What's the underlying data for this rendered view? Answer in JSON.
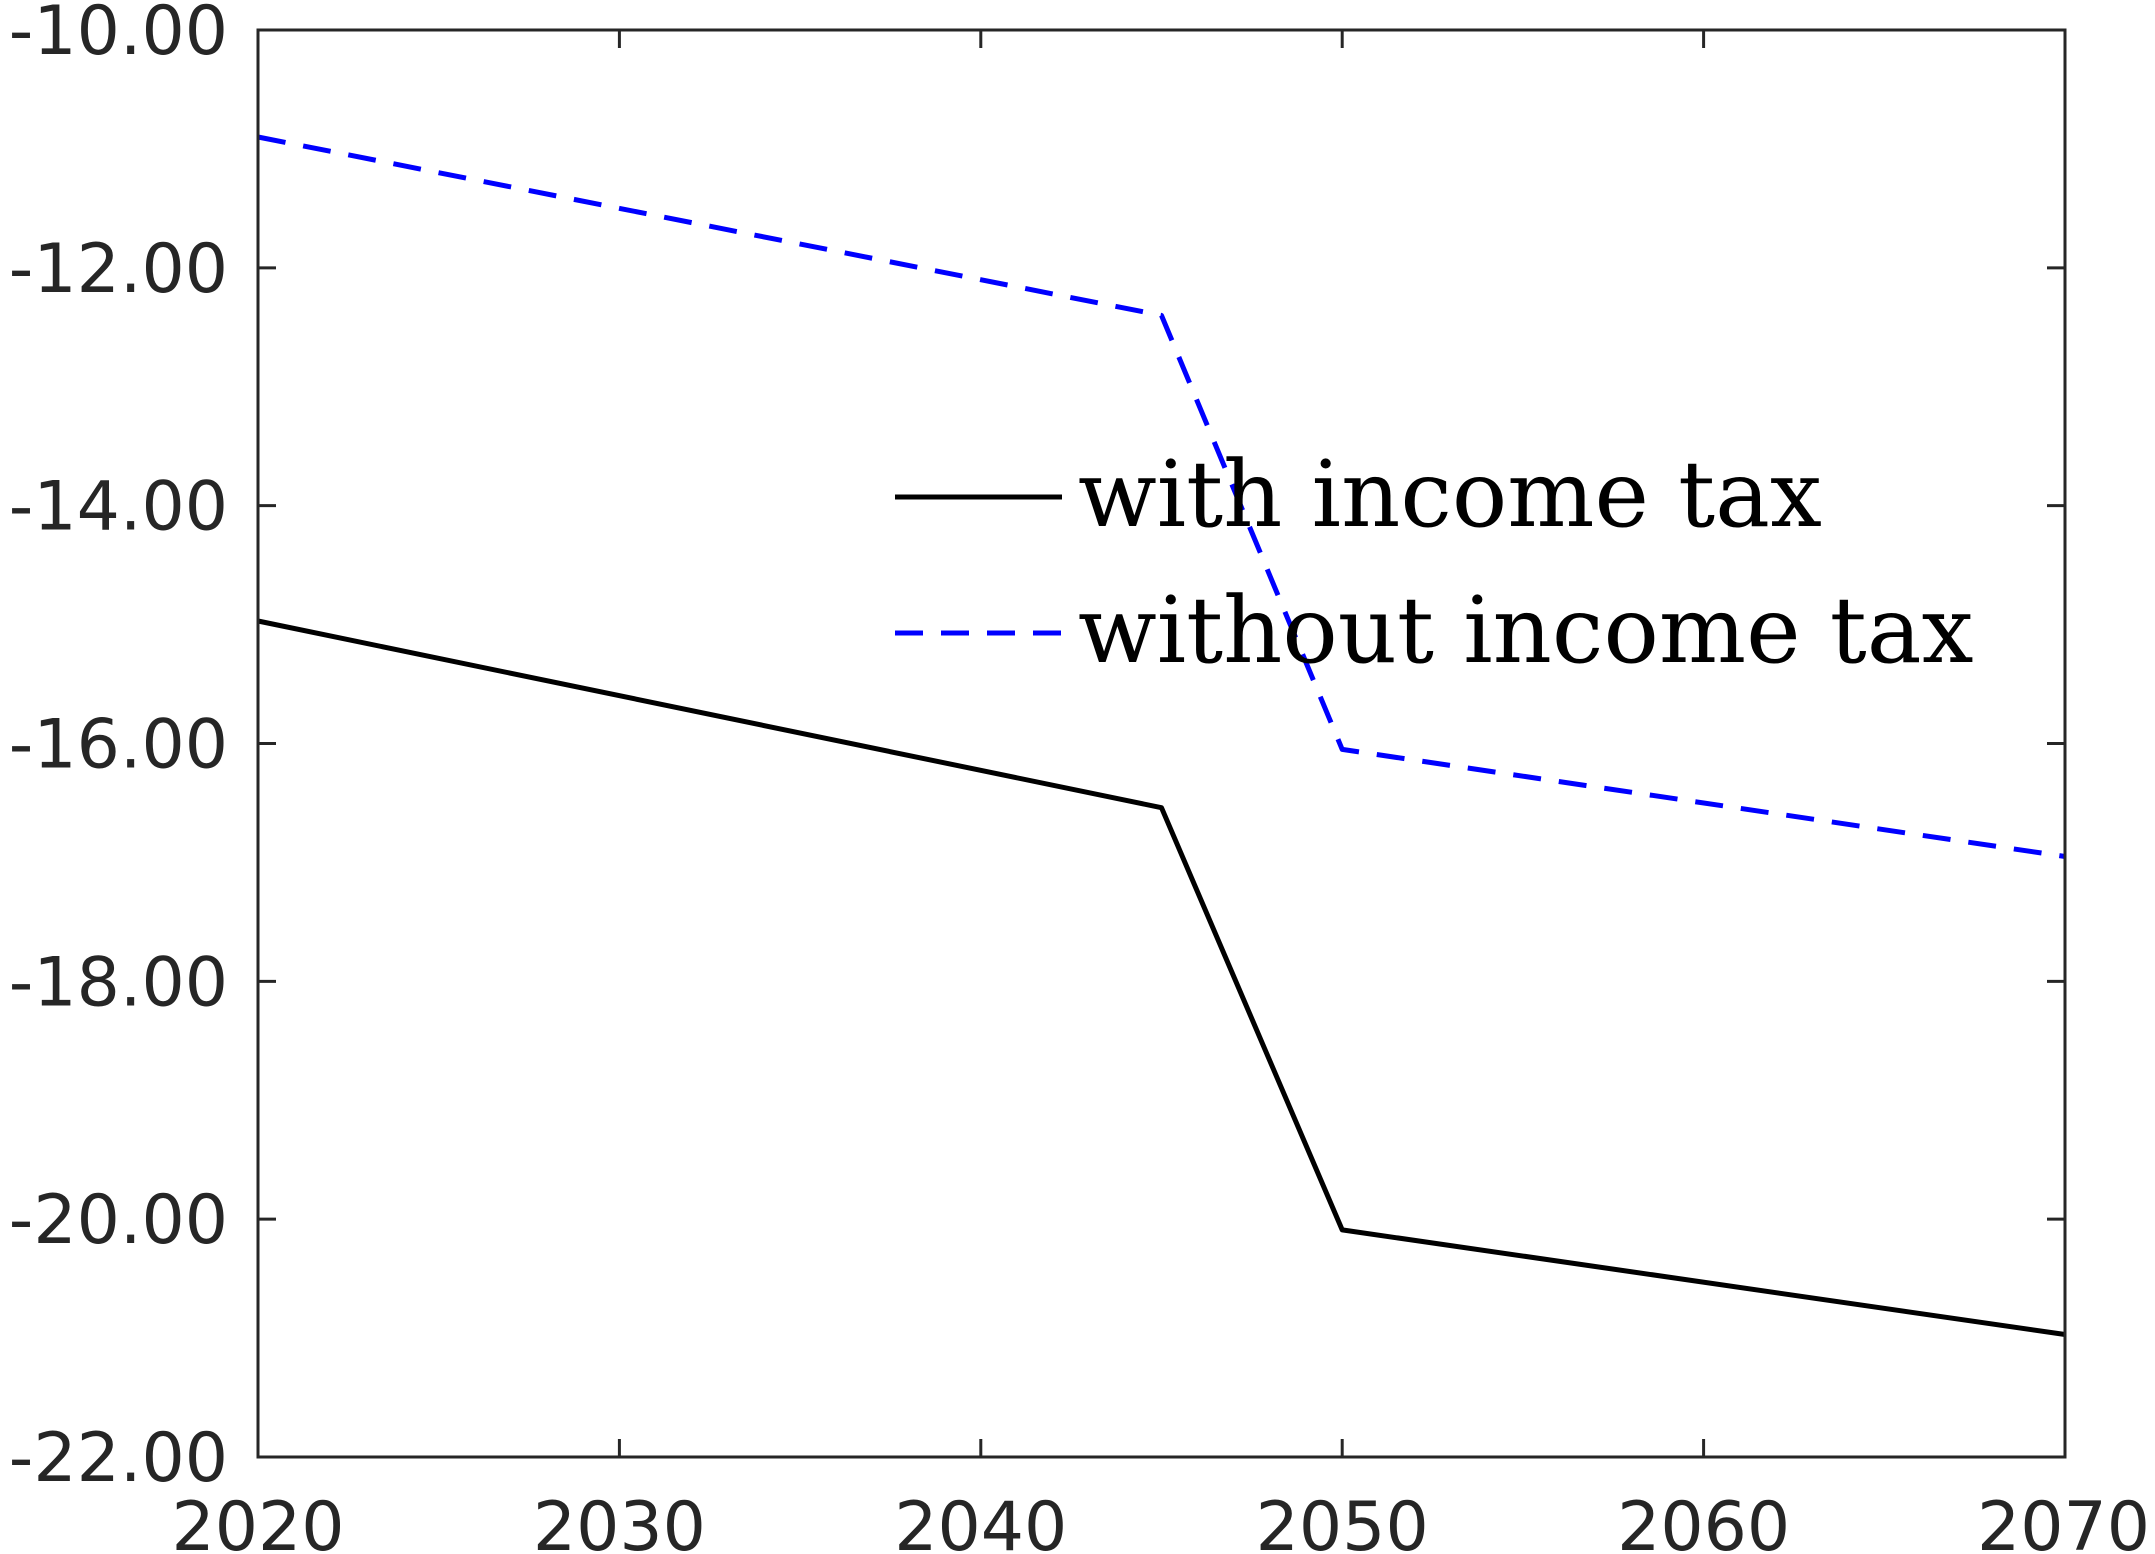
{
  "chart_data": {
    "type": "line",
    "title": "",
    "xlabel": "",
    "ylabel": "",
    "xlim": [
      2020,
      2070
    ],
    "ylim": [
      -22,
      -10
    ],
    "x_ticks": [
      2020,
      2030,
      2040,
      2050,
      2060,
      2070
    ],
    "x_tick_labels": [
      "2020",
      "2030",
      "2040",
      "2050",
      "2060",
      "2070"
    ],
    "y_ticks": [
      -10,
      -12,
      -14,
      -16,
      -18,
      -20,
      -22
    ],
    "y_tick_labels": [
      "-10.00",
      "-12.00",
      "-14.00",
      "-16.00",
      "-18.00",
      "-20.00",
      "-22.00"
    ],
    "grid": false,
    "legend_position": "right-center",
    "series": [
      {
        "name": "with income tax",
        "color": "#000000",
        "style": "solid",
        "x": [
          2020,
          2045,
          2050,
          2070
        ],
        "y": [
          -14.97,
          -16.54,
          -20.09,
          -20.97
        ]
      },
      {
        "name": "without income tax",
        "color": "#0000ff",
        "style": "dashed",
        "x": [
          2020,
          2045,
          2050,
          2070
        ],
        "y": [
          -10.9,
          -12.4,
          -16.05,
          -16.95
        ]
      }
    ]
  }
}
